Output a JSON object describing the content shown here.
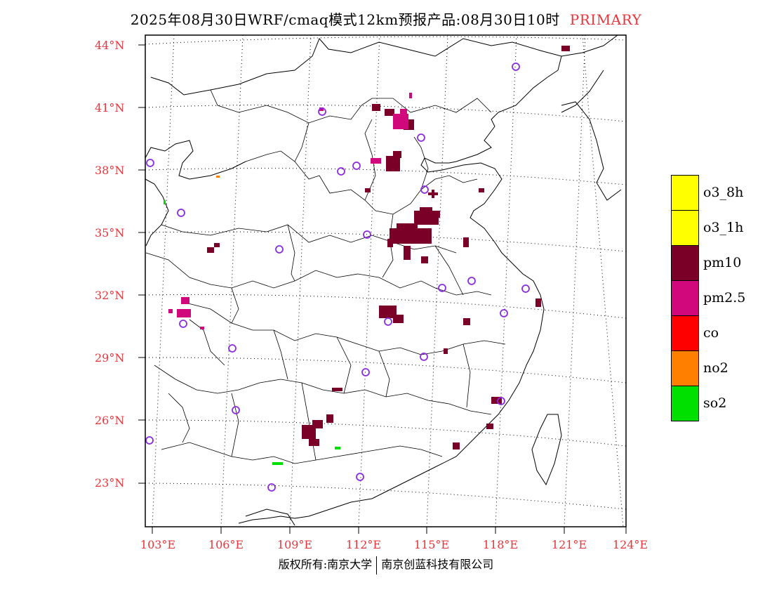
{
  "title": "2025年08月30日WRF/cmaq模式12km预报产品:08月30日10时",
  "title_tag": "PRIMARY",
  "colors": {
    "axis_label": "#e8353a",
    "marker": "#8b2be2",
    "background": "#ffffff"
  },
  "lat_labels": [
    "44°N",
    "41°N",
    "38°N",
    "35°N",
    "32°N",
    "29°N",
    "26°N",
    "23°N"
  ],
  "lon_labels": [
    "103°E",
    "106°E",
    "109°E",
    "112°E",
    "115°E",
    "118°E",
    "121°E",
    "124°E"
  ],
  "legend": [
    {
      "label": "o3_8h",
      "color": "#ffff00"
    },
    {
      "label": "o3_1h",
      "color": "#ffff00"
    },
    {
      "label": "pm10",
      "color": "#7a0028"
    },
    {
      "label": "pm2.5",
      "color": "#d0087c"
    },
    {
      "label": "co",
      "color": "#ff0000"
    },
    {
      "label": "no2",
      "color": "#ff7f00"
    },
    {
      "label": "so2",
      "color": "#00e000"
    }
  ],
  "footer": {
    "left": "版权所有:南京大学",
    "right": "南京创蓝科技有限公司"
  }
}
